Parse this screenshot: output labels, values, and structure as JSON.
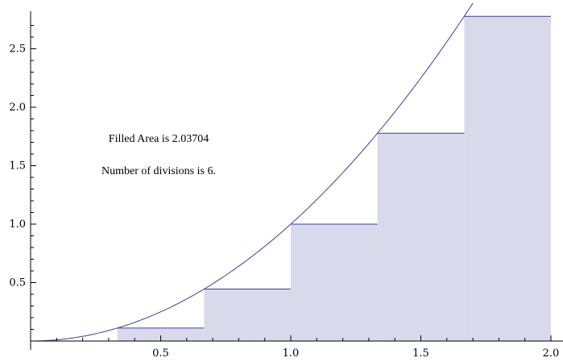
{
  "chart_data": {
    "type": "area",
    "title": "",
    "xlabel": "",
    "ylabel": "",
    "xlim": [
      0,
      2
    ],
    "ylim": [
      0,
      2.8
    ],
    "x_ticks": [
      0.5,
      1.0,
      1.5,
      2.0
    ],
    "x_tick_labels": [
      "0.5",
      "1.0",
      "1.5",
      "2.0"
    ],
    "y_ticks": [
      0.5,
      1.0,
      1.5,
      2.0,
      2.5
    ],
    "y_tick_labels": [
      "0.5",
      "1.0",
      "1.5",
      "2.0",
      "2.5"
    ],
    "curve": {
      "function": "x^2",
      "domain": [
        0,
        1.7
      ]
    },
    "rectangles": [
      {
        "x0": 0.0,
        "x1": 0.3333,
        "height": 0.0
      },
      {
        "x0": 0.3333,
        "x1": 0.6667,
        "height": 0.1111
      },
      {
        "x0": 0.6667,
        "x1": 1.0,
        "height": 0.4444
      },
      {
        "x0": 1.0,
        "x1": 1.3333,
        "height": 1.0
      },
      {
        "x0": 1.3333,
        "x1": 1.6667,
        "height": 1.7778
      },
      {
        "x0": 1.6667,
        "x1": 2.0,
        "height": 2.7778
      }
    ],
    "annotations": [
      "Filled Area is 2.03704",
      "Number of divisions is 6."
    ],
    "colors": {
      "fill": "#d9d9ec",
      "line": "#3f3f9f",
      "axis": "#000000"
    },
    "grid": false
  }
}
